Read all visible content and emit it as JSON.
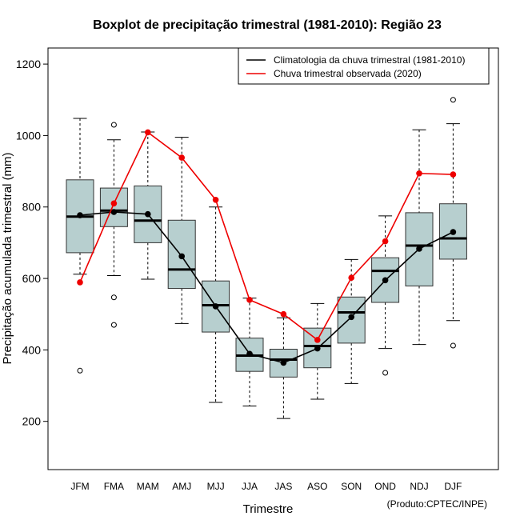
{
  "chart_data": {
    "type": "boxplot",
    "title": "Boxplot de precipitação trimestral (1981-2010): Região 23",
    "xlabel": "Trimestre",
    "ylabel": "Precipitação acumulada trimestral (mm)",
    "credit": "(Produto:CPTEC/INPE)",
    "ylim": [
      65,
      1245
    ],
    "yticks": [
      200,
      400,
      600,
      800,
      1000,
      1200
    ],
    "categories": [
      "JFM",
      "FMA",
      "MAM",
      "AMJ",
      "MJJ",
      "JJA",
      "JAS",
      "ASO",
      "SON",
      "OND",
      "NDJ",
      "DJF"
    ],
    "boxes": [
      {
        "min": 612,
        "q1": 672,
        "median": 773,
        "q3": 876,
        "max": 1048,
        "outliers": [
          342
        ]
      },
      {
        "min": 608,
        "q1": 745,
        "median": 790,
        "q3": 853,
        "max": 988,
        "outliers": [
          1030,
          547,
          470
        ]
      },
      {
        "min": 598,
        "q1": 700,
        "median": 762,
        "q3": 859,
        "max": 1010,
        "outliers": []
      },
      {
        "min": 474,
        "q1": 572,
        "median": 625,
        "q3": 763,
        "max": 995,
        "outliers": []
      },
      {
        "min": 253,
        "q1": 450,
        "median": 525,
        "q3": 593,
        "max": 800,
        "outliers": []
      },
      {
        "min": 243,
        "q1": 340,
        "median": 384,
        "q3": 433,
        "max": 545,
        "outliers": []
      },
      {
        "min": 208,
        "q1": 324,
        "median": 373,
        "q3": 402,
        "max": 490,
        "outliers": []
      },
      {
        "min": 262,
        "q1": 350,
        "median": 411,
        "q3": 461,
        "max": 530,
        "outliers": []
      },
      {
        "min": 306,
        "q1": 419,
        "median": 505,
        "q3": 548,
        "max": 653,
        "outliers": []
      },
      {
        "min": 404,
        "q1": 533,
        "median": 621,
        "q3": 658,
        "max": 775,
        "outliers": [
          336
        ]
      },
      {
        "min": 415,
        "q1": 579,
        "median": 692,
        "q3": 784,
        "max": 1016,
        "outliers": []
      },
      {
        "min": 482,
        "q1": 654,
        "median": 712,
        "q3": 809,
        "max": 1033,
        "outliers": [
          1100,
          412
        ]
      }
    ],
    "series": [
      {
        "name": "Climatologia da chuva trimestral (1981-2010)",
        "color": "#000000",
        "values": [
          777,
          786,
          780,
          662,
          522,
          389,
          364,
          404,
          492,
          595,
          683,
          730
        ]
      },
      {
        "name": "Chuva trimestral observada (2020)",
        "color": "#ee0000",
        "values": [
          589,
          810,
          1009,
          938,
          820,
          540,
          500,
          428,
          602,
          704,
          894,
          891
        ]
      }
    ],
    "legend_position": "top-right",
    "box_fill": "#b7cfcf"
  }
}
